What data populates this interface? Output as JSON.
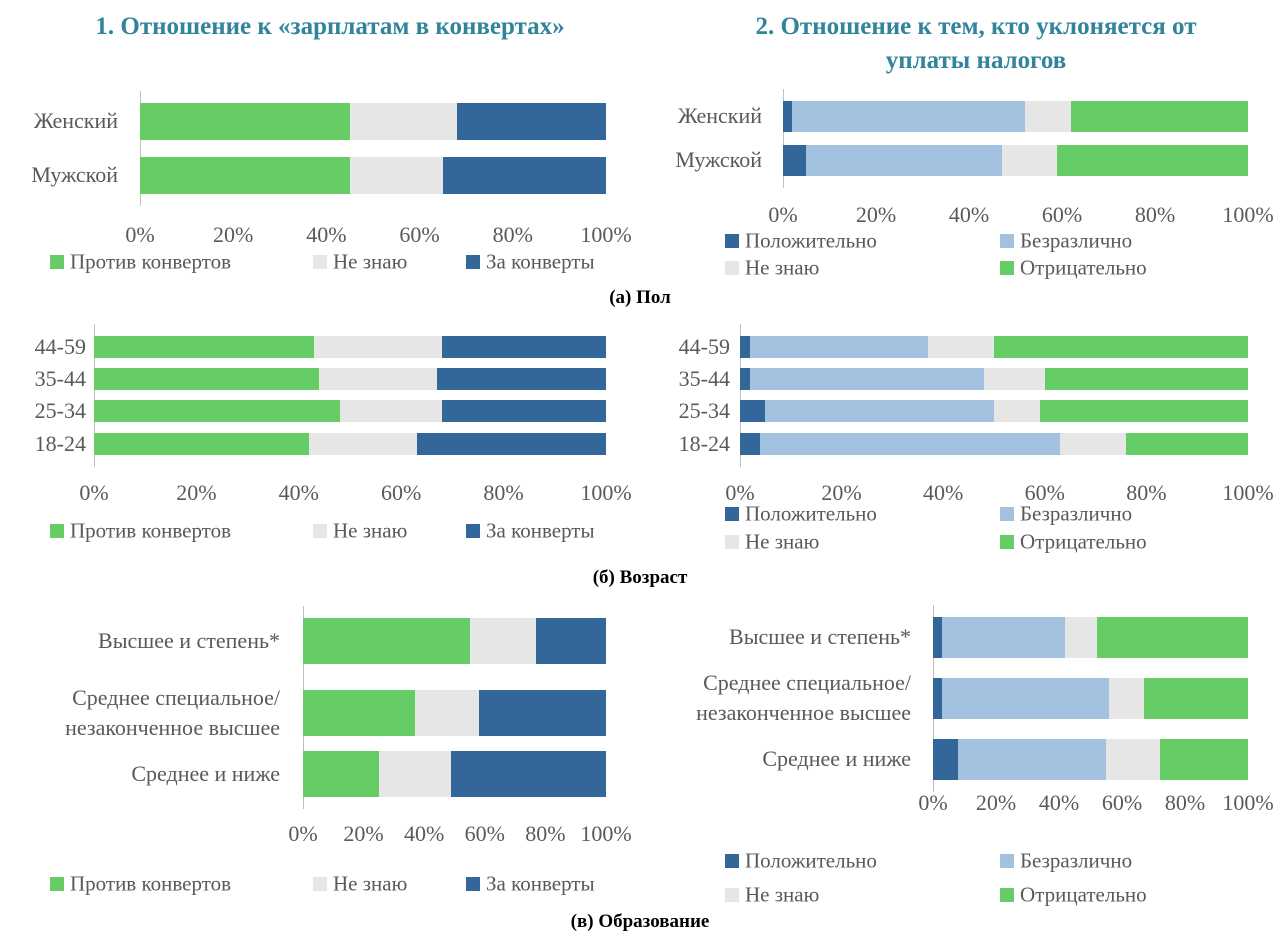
{
  "titles": [
    "1. Отношение к «зарплатам в конвертах»",
    "2. Отношение к тем, кто уклоняется от\nуплаты налогов"
  ],
  "captions": [
    "(а) Пол",
    "(б) Возраст",
    "(в) Образование"
  ],
  "chart_data": [
    {
      "type": "bar",
      "orientation": "horizontal",
      "stacked": true,
      "legend": "bottom",
      "categories": [
        "Женский",
        "Мужской"
      ],
      "series": [
        {
          "name": "Против конвертов",
          "color": "#66cc66",
          "values": [
            45,
            45
          ]
        },
        {
          "name": "Не знаю",
          "color": "#e6e6e6",
          "values": [
            23,
            20
          ]
        },
        {
          "name": "За конверты",
          "color": "#336699",
          "values": [
            32,
            35
          ]
        }
      ],
      "xlim": [
        0,
        100
      ],
      "xticks": [
        {
          "value": 0,
          "label": "0%"
        },
        {
          "value": 20,
          "label": "20%"
        },
        {
          "value": 40,
          "label": "40%"
        },
        {
          "value": 60,
          "label": "60%"
        },
        {
          "value": 80,
          "label": "80%"
        },
        {
          "value": 100,
          "label": "100%"
        }
      ]
    },
    {
      "type": "bar",
      "orientation": "horizontal",
      "stacked": true,
      "legend": "bottom",
      "categories": [
        "Женский",
        "Мужской"
      ],
      "series": [
        {
          "name": "Положительно",
          "color": "#336699",
          "values": [
            2,
            5
          ]
        },
        {
          "name": "Безразлично",
          "color": "#a3c2e0",
          "values": [
            50,
            42
          ]
        },
        {
          "name": "Не знаю",
          "color": "#e6e6e6",
          "values": [
            10,
            12
          ]
        },
        {
          "name": "Отрицательно",
          "color": "#66cc66",
          "values": [
            38,
            41
          ]
        }
      ],
      "xlim": [
        0,
        100
      ],
      "xticks": [
        {
          "value": 0,
          "label": "0%"
        },
        {
          "value": 20,
          "label": "20%"
        },
        {
          "value": 40,
          "label": "40%"
        },
        {
          "value": 60,
          "label": "60%"
        },
        {
          "value": 80,
          "label": "80%"
        },
        {
          "value": 100,
          "label": "100%"
        }
      ]
    },
    {
      "type": "bar",
      "orientation": "horizontal",
      "stacked": true,
      "legend": "bottom",
      "categories": [
        "44-59",
        "35-44",
        "25-34",
        "18-24"
      ],
      "series": [
        {
          "name": "Против конвертов",
          "color": "#66cc66",
          "values": [
            43,
            44,
            48,
            42
          ]
        },
        {
          "name": "Не знаю",
          "color": "#e6e6e6",
          "values": [
            25,
            23,
            20,
            21
          ]
        },
        {
          "name": "За конверты",
          "color": "#336699",
          "values": [
            32,
            33,
            32,
            37
          ]
        }
      ],
      "xlim": [
        0,
        100
      ],
      "xticks": [
        {
          "value": 0,
          "label": "0%"
        },
        {
          "value": 20,
          "label": "20%"
        },
        {
          "value": 40,
          "label": "40%"
        },
        {
          "value": 60,
          "label": "60%"
        },
        {
          "value": 80,
          "label": "80%"
        },
        {
          "value": 100,
          "label": "100%"
        }
      ]
    },
    {
      "type": "bar",
      "orientation": "horizontal",
      "stacked": true,
      "legend": "bottom",
      "categories": [
        "44-59",
        "35-44",
        "25-34",
        "18-24"
      ],
      "series": [
        {
          "name": "Положительно",
          "color": "#336699",
          "values": [
            2,
            2,
            5,
            4
          ]
        },
        {
          "name": "Безразлично",
          "color": "#a3c2e0",
          "values": [
            35,
            46,
            45,
            59
          ]
        },
        {
          "name": "Не знаю",
          "color": "#e6e6e6",
          "values": [
            13,
            12,
            9,
            13
          ]
        },
        {
          "name": "Отрицательно",
          "color": "#66cc66",
          "values": [
            50,
            40,
            41,
            24
          ]
        }
      ],
      "xlim": [
        0,
        100
      ],
      "xticks": [
        {
          "value": 0,
          "label": "0%"
        },
        {
          "value": 20,
          "label": "20%"
        },
        {
          "value": 40,
          "label": "40%"
        },
        {
          "value": 60,
          "label": "60%"
        },
        {
          "value": 80,
          "label": "80%"
        },
        {
          "value": 100,
          "label": "100%"
        }
      ]
    },
    {
      "type": "bar",
      "orientation": "horizontal",
      "stacked": true,
      "legend": "bottom",
      "categories": [
        "Высшее и степень*",
        "Среднее специальное/\nнезаконченное высшее",
        "Среднее и ниже"
      ],
      "series": [
        {
          "name": "Против конвертов",
          "color": "#66cc66",
          "values": [
            55,
            37,
            25
          ]
        },
        {
          "name": "Не знаю",
          "color": "#e6e6e6",
          "values": [
            22,
            21,
            24
          ]
        },
        {
          "name": "За конверты",
          "color": "#336699",
          "values": [
            23,
            42,
            51
          ]
        }
      ],
      "xlim": [
        0,
        100
      ],
      "xticks": [
        {
          "value": 0,
          "label": "0%"
        },
        {
          "value": 20,
          "label": "20%"
        },
        {
          "value": 40,
          "label": "40%"
        },
        {
          "value": 60,
          "label": "60%"
        },
        {
          "value": 80,
          "label": "80%"
        },
        {
          "value": 100,
          "label": "100%"
        }
      ]
    },
    {
      "type": "bar",
      "orientation": "horizontal",
      "stacked": true,
      "legend": "bottom",
      "categories": [
        "Высшее и степень*",
        "Среднее специальное/\nнезаконченное высшее",
        "Среднее и ниже"
      ],
      "series": [
        {
          "name": "Положительно",
          "color": "#336699",
          "values": [
            3,
            3,
            8
          ]
        },
        {
          "name": "Безразлично",
          "color": "#a3c2e0",
          "values": [
            39,
            53,
            47
          ]
        },
        {
          "name": "Не знаю",
          "color": "#e6e6e6",
          "values": [
            10,
            11,
            17
          ]
        },
        {
          "name": "Отрицательно",
          "color": "#66cc66",
          "values": [
            48,
            33,
            28
          ]
        }
      ],
      "xlim": [
        0,
        100
      ],
      "xticks": [
        {
          "value": 0,
          "label": "0%"
        },
        {
          "value": 20,
          "label": "20%"
        },
        {
          "value": 40,
          "label": "40%"
        },
        {
          "value": 60,
          "label": "60%"
        },
        {
          "value": 80,
          "label": "80%"
        },
        {
          "value": 100,
          "label": "100%"
        }
      ]
    }
  ]
}
